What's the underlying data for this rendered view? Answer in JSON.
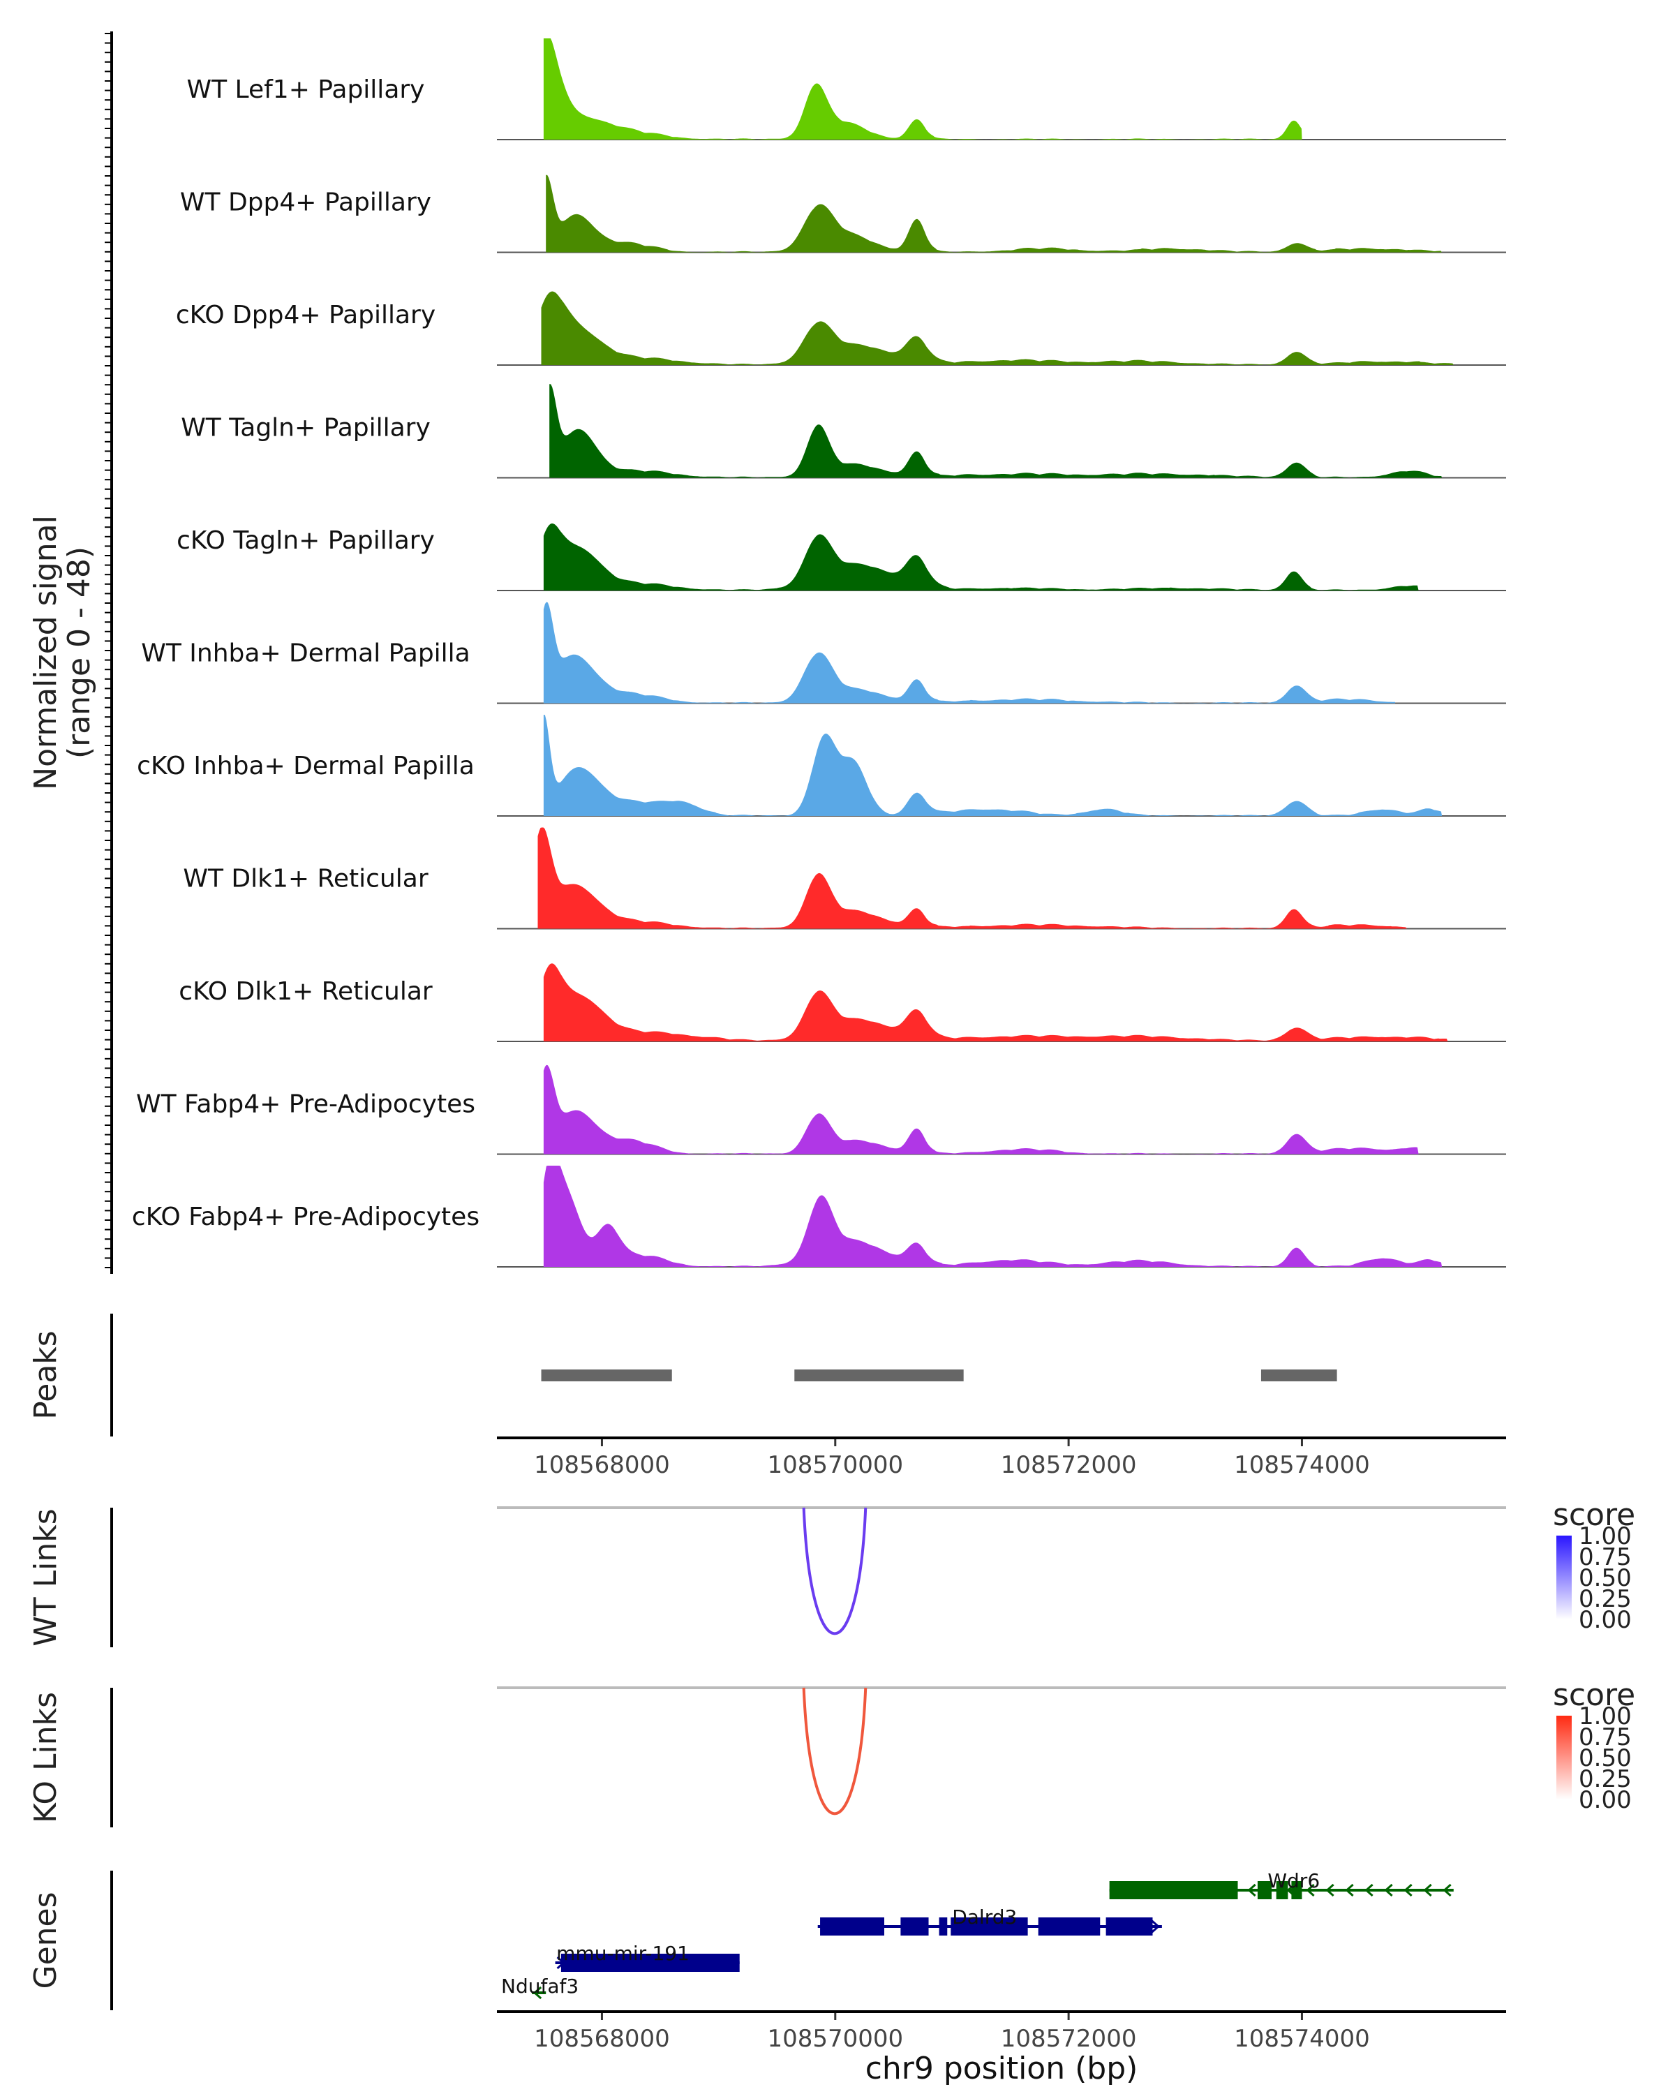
{
  "chart_data": {
    "type": "area",
    "title": "",
    "xlabel": "chr9 position (bp)",
    "xlim": [
      108567100,
      108575750
    ],
    "x_ticks": [
      108568000,
      108570000,
      108572000,
      108574000
    ],
    "x_tick_labels": [
      "108568000",
      "108570000",
      "108572000",
      "108574000"
    ],
    "coverage": {
      "ylabel_line1": "Normalized signal",
      "ylabel_line2": "(range 0 - 48)",
      "ylim": [
        0,
        48
      ],
      "tracks": [
        {
          "name": "WT Lef1+ Papillary",
          "color": "#66cc00",
          "data_start": 108567500,
          "data_end": 108574000,
          "bumps": [
            [
              108567500,
              45,
              120
            ],
            [
              108567750,
              10,
              260
            ],
            [
              108568200,
              3,
              300
            ],
            [
              108569830,
              22,
              90
            ],
            [
              108570050,
              8,
              200
            ],
            [
              108570700,
              9,
              70
            ],
            [
              108573930,
              9,
              60
            ]
          ]
        },
        {
          "name": "WT Dpp4+ Papillary",
          "color": "#4a8a00",
          "data_start": 108567520,
          "data_end": 108575200,
          "bumps": [
            [
              108567520,
              32,
              60
            ],
            [
              108567780,
              17,
              150
            ],
            [
              108568200,
              4,
              220
            ],
            [
              108569850,
              18,
              120
            ],
            [
              108570100,
              8,
              220
            ],
            [
              108570700,
              15,
              70
            ],
            [
              108571800,
              1.5,
              300
            ],
            [
              108572900,
              1.5,
              300
            ],
            [
              108573950,
              4,
              80
            ],
            [
              108574600,
              1.5,
              350
            ]
          ]
        },
        {
          "name": "cKO Dpp4+ Papillary",
          "color": "#4a8a00",
          "data_start": 108567480,
          "data_end": 108575300,
          "bumps": [
            [
              108567550,
              25,
              120
            ],
            [
              108567780,
              16,
              200
            ],
            [
              108568300,
              3,
              350
            ],
            [
              108569850,
              16,
              120
            ],
            [
              108570200,
              9,
              280
            ],
            [
              108570700,
              11,
              90
            ],
            [
              108571500,
              2,
              400
            ],
            [
              108572600,
              1.5,
              400
            ],
            [
              108573950,
              6,
              80
            ],
            [
              108574700,
              1.5,
              350
            ]
          ]
        },
        {
          "name": "WT Tagln+ Papillary",
          "color": "#006400",
          "data_start": 108567550,
          "data_end": 108575200,
          "bumps": [
            [
              108567550,
              38,
              60
            ],
            [
              108567800,
              22,
              150
            ],
            [
              108568300,
              3,
              300
            ],
            [
              108569850,
              22,
              90
            ],
            [
              108570150,
              6,
              250
            ],
            [
              108570700,
              11,
              70
            ],
            [
              108571500,
              1.5,
              500
            ],
            [
              108572800,
              1.5,
              500
            ],
            [
              108573950,
              7,
              80
            ],
            [
              108574900,
              3,
              150
            ]
          ]
        },
        {
          "name": "cKO Tagln+ Papillary",
          "color": "#006400",
          "data_start": 108567500,
          "data_end": 108575000,
          "bumps": [
            [
              108567550,
              23,
              100
            ],
            [
              108567800,
              19,
              180
            ],
            [
              108568300,
              3,
              300
            ],
            [
              108569850,
              20,
              110
            ],
            [
              108570200,
              12,
              300
            ],
            [
              108570700,
              13,
              90
            ],
            [
              108571500,
              1,
              400
            ],
            [
              108572900,
              1,
              400
            ],
            [
              108573930,
              9,
              70
            ],
            [
              108574900,
              2,
              150
            ]
          ]
        },
        {
          "name": "WT Inhba+ Dermal Papilla",
          "color": "#5aa8e6",
          "data_start": 108567500,
          "data_end": 108574800,
          "bumps": [
            [
              108567520,
              38,
              60
            ],
            [
              108567760,
              22,
              180
            ],
            [
              108568250,
              4,
              250
            ],
            [
              108569850,
              22,
              120
            ],
            [
              108570200,
              6,
              220
            ],
            [
              108570700,
              10,
              70
            ],
            [
              108571600,
              1.5,
              500
            ],
            [
              108573950,
              8,
              80
            ],
            [
              108574400,
              1.5,
              250
            ]
          ]
        },
        {
          "name": "cKO Inhba+ Dermal Papilla",
          "color": "#5aa8e6",
          "data_start": 108567500,
          "data_end": 108575200,
          "bumps": [
            [
              108567500,
              42,
              50
            ],
            [
              108567800,
              22,
              180
            ],
            [
              108568300,
              6,
              250
            ],
            [
              108568700,
              5,
              150
            ],
            [
              108569900,
              35,
              100
            ],
            [
              108570150,
              25,
              120
            ],
            [
              108570700,
              10,
              80
            ],
            [
              108571300,
              3,
              300
            ],
            [
              108572300,
              3,
              150
            ],
            [
              108573950,
              7,
              90
            ],
            [
              108574700,
              3,
              150
            ],
            [
              108575100,
              3,
              80
            ]
          ]
        },
        {
          "name": "WT Dlk1+ Reticular",
          "color": "#ff2a2a",
          "data_start": 108567450,
          "data_end": 108574900,
          "bumps": [
            [
              108567480,
              40,
              80
            ],
            [
              108567760,
              20,
              200
            ],
            [
              108568300,
              3,
              300
            ],
            [
              108569850,
              22,
              100
            ],
            [
              108570150,
              8,
              250
            ],
            [
              108570700,
              8,
              70
            ],
            [
              108571700,
              1.5,
              600
            ],
            [
              108573930,
              9,
              70
            ],
            [
              108574500,
              1.5,
              300
            ]
          ]
        },
        {
          "name": "cKO Dlk1+ Reticular",
          "color": "#ff2a2a",
          "data_start": 108567500,
          "data_end": 108575250,
          "bumps": [
            [
              108567550,
              26,
              100
            ],
            [
              108567800,
              20,
              200
            ],
            [
              108568400,
              4,
              400
            ],
            [
              108569850,
              19,
              110
            ],
            [
              108570200,
              10,
              280
            ],
            [
              108570700,
              12,
              90
            ],
            [
              108571500,
              2,
              500
            ],
            [
              108572600,
              2,
              500
            ],
            [
              108573950,
              6,
              90
            ],
            [
              108574700,
              2,
              400
            ]
          ]
        },
        {
          "name": "WT Fabp4+ Pre-Adipocytes",
          "color": "#b037e6",
          "data_start": 108567500,
          "data_end": 108575000,
          "bumps": [
            [
              108567520,
              35,
              70
            ],
            [
              108567780,
              20,
              170
            ],
            [
              108568250,
              6,
              200
            ],
            [
              108569850,
              17,
              100
            ],
            [
              108570200,
              6,
              230
            ],
            [
              108570700,
              11,
              70
            ],
            [
              108571600,
              2,
              300
            ],
            [
              108573950,
              9,
              80
            ],
            [
              108574500,
              2.5,
              300
            ],
            [
              108574950,
              2,
              100
            ]
          ]
        },
        {
          "name": "cKO Fabp4+ Pre-Adipocytes",
          "color": "#b037e6",
          "data_start": 108567500,
          "data_end": 108575200,
          "bumps": [
            [
              108567550,
              38,
              80
            ],
            [
              108567700,
              32,
              120
            ],
            [
              108568050,
              18,
              100
            ],
            [
              108568350,
              5,
              200
            ],
            [
              108569870,
              26,
              100
            ],
            [
              108570150,
              12,
              280
            ],
            [
              108570700,
              9,
              80
            ],
            [
              108571500,
              3,
              300
            ],
            [
              108572600,
              2.5,
              300
            ],
            [
              108573950,
              9,
              70
            ],
            [
              108574700,
              4,
              150
            ],
            [
              108575100,
              3,
              80
            ]
          ]
        }
      ]
    },
    "peaks": {
      "label": "Peaks",
      "color": "#666666",
      "ranges": [
        [
          108567480,
          108568600
        ],
        [
          108569650,
          108571100
        ],
        [
          108573650,
          108574300
        ]
      ]
    },
    "links": [
      {
        "label": "WT Links",
        "color": "#6a3cf0",
        "start": 108569730,
        "end": 108570260,
        "score": 0.8,
        "legend": {
          "title": "score",
          "color": "#2a16ff",
          "ticks": [
            "1.00",
            "0.75",
            "0.50",
            "0.25",
            "0.00"
          ]
        }
      },
      {
        "label": "KO Links",
        "color": "#f0573c",
        "start": 108569730,
        "end": 108570260,
        "score": 0.8,
        "legend": {
          "title": "score",
          "color": "#ff2a12",
          "ticks": [
            "1.00",
            "0.75",
            "0.50",
            "0.25",
            "0.00"
          ]
        }
      }
    ],
    "genes": {
      "label": "Genes",
      "items": [
        {
          "name": "Wdr6",
          "strand": "-",
          "color": "#006400",
          "row": 0,
          "start": 108572350,
          "end": 108575300,
          "exons": [
            [
              108572350,
              108573450
            ],
            [
              108573620,
              108573740
            ],
            [
              108573780,
              108573880
            ],
            [
              108573910,
              108574000
            ]
          ],
          "name_pos": 108573930
        },
        {
          "name": "Dalrd3",
          "strand": "+",
          "color": "#00008b",
          "row": 1,
          "start": 108569850,
          "end": 108572800,
          "exons": [
            [
              108569870,
              108570420
            ],
            [
              108570560,
              108570800
            ],
            [
              108570890,
              108570960
            ],
            [
              108570990,
              108571650
            ],
            [
              108571740,
              108572270
            ],
            [
              108572320,
              108572720
            ]
          ],
          "name_pos": 108571280
        },
        {
          "name": "mmu-mir-191",
          "strand": "+",
          "color": "#00008b",
          "row": 2,
          "start": 108567600,
          "end": 108569180,
          "exons": [
            [
              108567650,
              108569180
            ]
          ],
          "name_pos": 108568180
        },
        {
          "name": "Ndufaf3",
          "strand": "-",
          "color": "#006400",
          "row": 3,
          "start": 108567400,
          "end": 108567520,
          "exons": [],
          "name_pos": 108567150
        }
      ]
    }
  }
}
